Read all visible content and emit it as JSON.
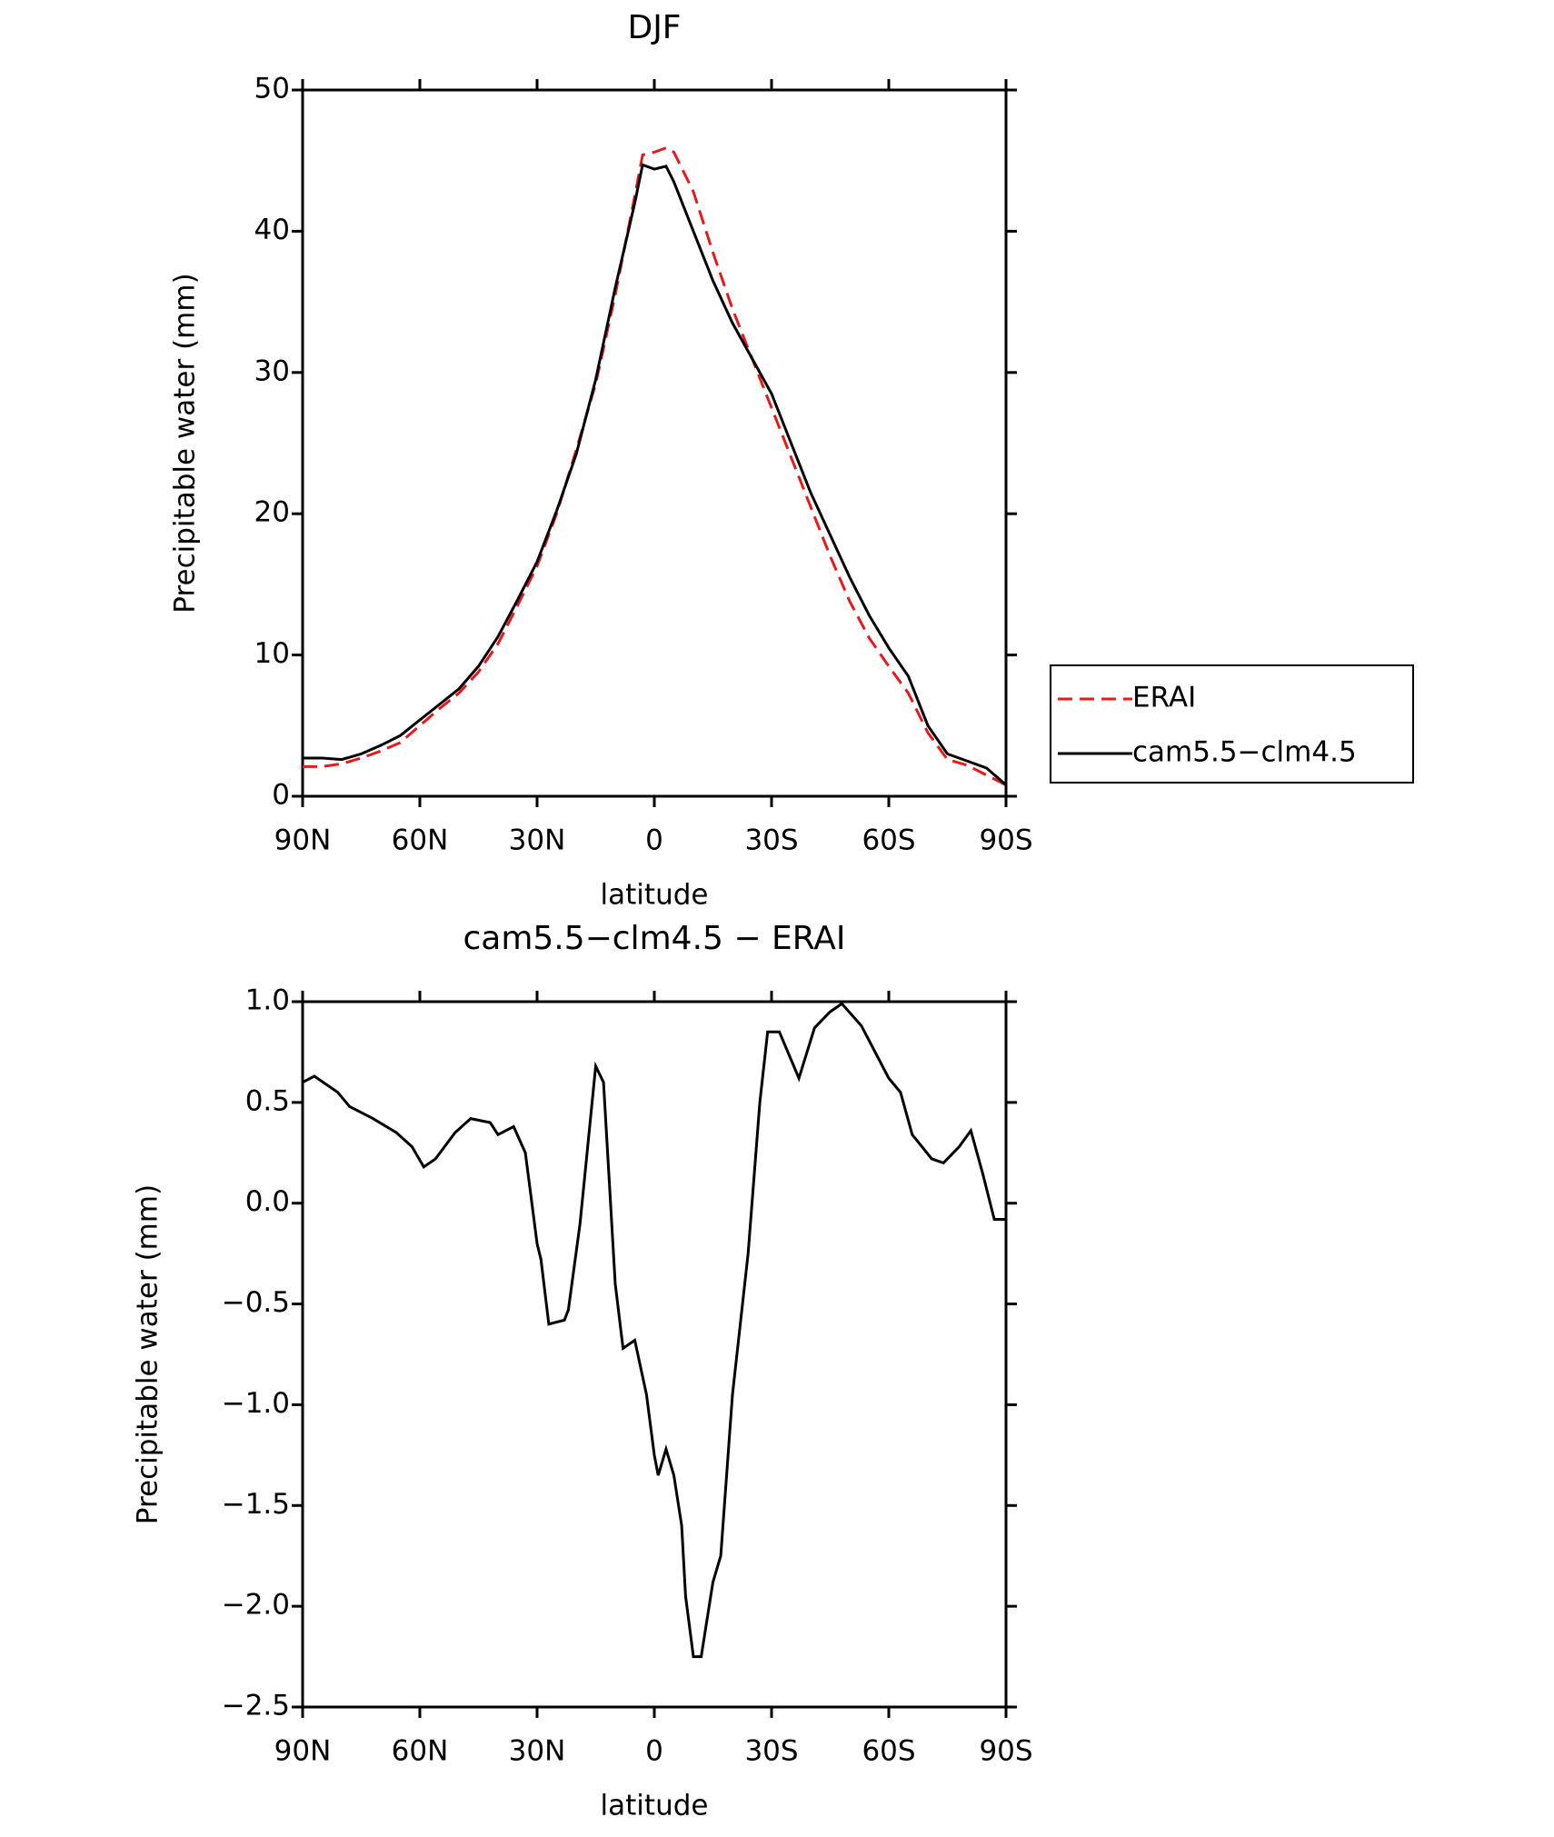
{
  "chart_data": [
    {
      "type": "line",
      "title": "DJF",
      "xlabel": "latitude",
      "ylabel": "Precipitable water (mm)",
      "x": [
        90,
        85,
        80,
        75,
        70,
        65,
        60,
        55,
        50,
        45,
        40,
        35,
        30,
        25,
        20,
        15,
        10,
        5,
        3,
        0,
        -3,
        -5,
        -10,
        -15,
        -20,
        -25,
        -30,
        -35,
        -40,
        -45,
        -50,
        -55,
        -60,
        -65,
        -70,
        -75,
        -80,
        -85,
        -90
      ],
      "series": [
        {
          "name": "ERAI",
          "color": "#e41a1c",
          "line_style": "dashed",
          "values": [
            2.1,
            2.1,
            2.3,
            2.7,
            3.2,
            3.8,
            5.0,
            6.2,
            7.3,
            8.8,
            10.8,
            13.5,
            16.3,
            20,
            24.5,
            29.2,
            35.5,
            42.5,
            45.4,
            45.6,
            45.9,
            45.6,
            42.8,
            38.5,
            34.5,
            31,
            27.5,
            24,
            20.5,
            17,
            13.8,
            11.2,
            9.2,
            7.3,
            4.5,
            2.6,
            2.2,
            1.5,
            0.8
          ]
        },
        {
          "name": "cam5.5−clm4.5",
          "color": "#000000",
          "line_style": "solid",
          "values": [
            2.7,
            2.7,
            2.6,
            3.0,
            3.6,
            4.3,
            5.4,
            6.5,
            7.6,
            9.2,
            11.3,
            13.9,
            16.6,
            20.2,
            24.2,
            29.5,
            36,
            42,
            44.7,
            44.4,
            44.6,
            43.5,
            40,
            36.5,
            33.5,
            31,
            28.5,
            25,
            21.5,
            18.5,
            15.5,
            12.8,
            10.5,
            8.5,
            5,
            3,
            2.5,
            2,
            0.8
          ]
        }
      ],
      "xlim": [
        90,
        -90
      ],
      "xticks": [
        {
          "value": 90,
          "label": "90N"
        },
        {
          "value": 60,
          "label": "60N"
        },
        {
          "value": 30,
          "label": "30N"
        },
        0,
        {
          "value": -30,
          "label": "30S"
        },
        {
          "value": -60,
          "label": "60S"
        },
        {
          "value": -90,
          "label": "90S"
        }
      ],
      "ylim": [
        0,
        50
      ],
      "yticks": [
        0,
        10,
        20,
        30,
        40,
        50
      ],
      "legend": "right"
    },
    {
      "type": "line",
      "title": "cam5.5−clm4.5 − ERAI",
      "xlabel": "latitude",
      "ylabel": "Precipitable water (mm)",
      "x": [
        90,
        87,
        81,
        78,
        72,
        66,
        62,
        59,
        56,
        51,
        47,
        42,
        40,
        36,
        33,
        30,
        29,
        27,
        23,
        22,
        19,
        15,
        13,
        10,
        8,
        5,
        2,
        0,
        -1,
        -3,
        -5,
        -7,
        -8,
        -10,
        -12,
        -15,
        -17,
        -20,
        -24,
        -27,
        -29,
        -32,
        -37,
        -41,
        -45,
        -48,
        -53,
        -60,
        -63,
        -66,
        -71,
        -74,
        -78,
        -81,
        -84,
        -87,
        -90
      ],
      "series": [
        {
          "color": "#000000",
          "line_style": "solid",
          "values": [
            0.6,
            0.63,
            0.55,
            0.48,
            0.42,
            0.35,
            0.28,
            0.18,
            0.22,
            0.35,
            0.42,
            0.4,
            0.34,
            0.38,
            0.25,
            -0.2,
            -0.28,
            -0.6,
            -0.58,
            -0.53,
            -0.1,
            0.68,
            0.6,
            -0.4,
            -0.72,
            -0.68,
            -0.95,
            -1.25,
            -1.35,
            -1.22,
            -1.35,
            -1.6,
            -1.95,
            -2.25,
            -2.25,
            -1.88,
            -1.75,
            -0.95,
            -0.25,
            0.5,
            0.85,
            0.85,
            0.62,
            0.87,
            0.95,
            0.99,
            0.88,
            0.62,
            0.55,
            0.34,
            0.22,
            0.2,
            0.28,
            0.36,
            0.15,
            -0.08,
            -0.08
          ]
        }
      ],
      "xlim": [
        90,
        -90
      ],
      "xticks": [
        {
          "value": 90,
          "label": "90N"
        },
        {
          "value": 60,
          "label": "60N"
        },
        {
          "value": 30,
          "label": "30N"
        },
        0,
        {
          "value": -30,
          "label": "30S"
        },
        {
          "value": -60,
          "label": "60S"
        },
        {
          "value": -90,
          "label": "90S"
        }
      ],
      "ylim": [
        -2.5,
        1.0
      ],
      "yticks": [
        {
          "value": -2.5,
          "label": "−2.5"
        },
        {
          "value": -2.0,
          "label": "−2.0"
        },
        {
          "value": -1.5,
          "label": "−1.5"
        },
        {
          "value": -1.0,
          "label": "−1.0"
        },
        {
          "value": -0.5,
          "label": "−0.5"
        },
        {
          "value": 0,
          "label": "0.0"
        },
        {
          "value": 0.5,
          "label": "0.5"
        },
        {
          "value": 1.0,
          "label": "1.0"
        }
      ]
    }
  ]
}
